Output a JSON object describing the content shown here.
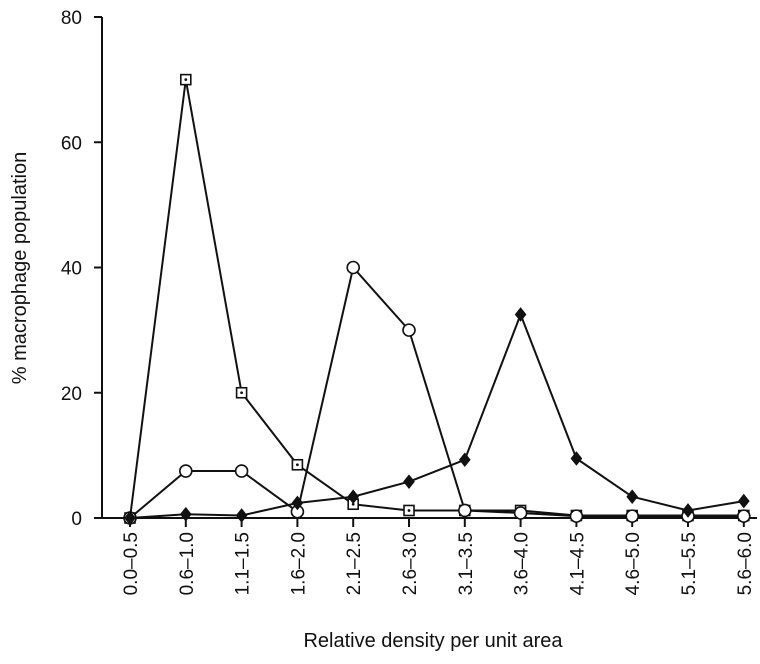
{
  "chart_data": {
    "type": "line",
    "title": "",
    "xlabel": "Relative density per unit area",
    "ylabel": "% macrophage population",
    "ylim": [
      0,
      80
    ],
    "yticks": [
      0,
      20,
      40,
      60,
      80
    ],
    "grid": false,
    "legend": "none",
    "categories": [
      "0.0–0.5",
      "0.6–1.0",
      "1.1–1.5",
      "1.6–2.0",
      "2.1–2.5",
      "2.6–3.0",
      "3.1–3.5",
      "3.6–4.0",
      "4.1–4.5",
      "4.6–5.0",
      "5.1–5.5",
      "5.6–6.0"
    ],
    "series": [
      {
        "marker": "square-dot",
        "color": "#111111",
        "values": [
          0,
          70,
          20,
          8.5,
          2.2,
          1.2,
          1.2,
          1.2,
          0.4,
          0.4,
          0.4,
          0.4
        ]
      },
      {
        "marker": "circle",
        "color": "#111111",
        "values": [
          0,
          7.5,
          7.5,
          1,
          40,
          30,
          1.2,
          0.8,
          0.3,
          0.3,
          0.3,
          0.3
        ]
      },
      {
        "marker": "diamond",
        "color": "#111111",
        "values": [
          0,
          0.6,
          0.4,
          2.4,
          3.4,
          5.8,
          9.3,
          32.5,
          9.5,
          3.4,
          1.2,
          2.7
        ]
      }
    ]
  }
}
